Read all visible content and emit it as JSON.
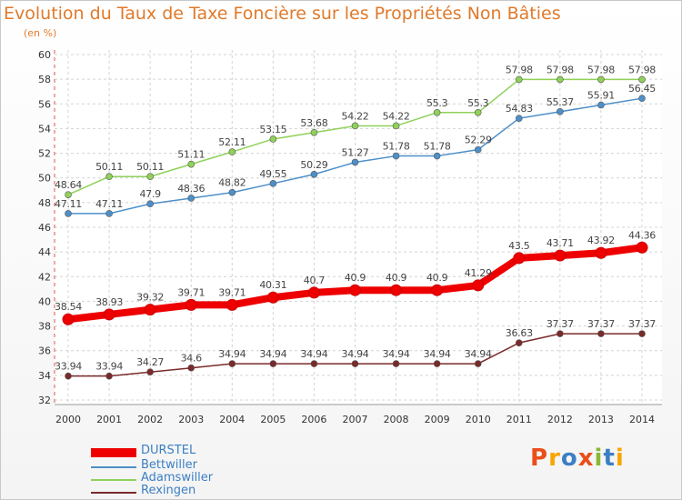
{
  "header": {
    "title": "Evolution du Taux de Taxe Foncière sur les Propriétés Non Bâties",
    "subtitle": "(en %)"
  },
  "brand": {
    "text": "Proxiti",
    "colors": [
      "#e94e1b",
      "#f7a600",
      "#3b7fc4",
      "#e94e1b",
      "#8ab833",
      "#3b7fc4",
      "#f7a600"
    ]
  },
  "chart_data": {
    "type": "line",
    "title": "Evolution du Taux de Taxe Foncière sur les Propriétés Non Bâties",
    "ylabel": "(en %)",
    "xlabel": "",
    "ylim": [
      32,
      60
    ],
    "yticks": [
      32,
      34,
      36,
      38,
      40,
      42,
      44,
      46,
      48,
      50,
      52,
      54,
      56,
      58,
      60
    ],
    "grid": true,
    "legend_position": "bottom-left",
    "x": [
      "2000",
      "2001",
      "2002",
      "2003",
      "2004",
      "2005",
      "2006",
      "2007",
      "2008",
      "2009",
      "2010",
      "2011",
      "2012",
      "2013",
      "2014"
    ],
    "series": [
      {
        "name": "DURSTEL",
        "color": "#ee0000",
        "emphasis": true,
        "values": [
          38.54,
          38.93,
          39.32,
          39.71,
          39.71,
          40.31,
          40.7,
          40.9,
          40.9,
          40.9,
          41.29,
          43.5,
          43.71,
          43.92,
          44.36
        ],
        "labels": [
          "38.54",
          "38.93",
          "39.32",
          "39.71",
          "39.71",
          "40.31",
          "40.7",
          "40.9",
          "40.9",
          "40.9",
          "41.29",
          "43.5",
          "43.71",
          "43.92",
          "44.36"
        ]
      },
      {
        "name": "Bettwiller",
        "color": "#4d8fc9",
        "values": [
          47.11,
          47.11,
          47.9,
          48.36,
          48.82,
          49.55,
          50.29,
          51.27,
          51.78,
          51.78,
          52.29,
          54.83,
          55.37,
          55.91,
          56.45
        ],
        "labels": [
          "47.11",
          "47.11",
          "47.9",
          "48.36",
          "48.82",
          "49.55",
          "50.29",
          "51.27",
          "51.78",
          "51.78",
          "52.29",
          "54.83",
          "55.37",
          "55.91",
          "56.45"
        ]
      },
      {
        "name": "Adamswiller",
        "color": "#8fd15a",
        "values": [
          48.64,
          50.11,
          50.11,
          51.11,
          52.11,
          53.15,
          53.68,
          54.22,
          54.22,
          55.3,
          55.3,
          57.98,
          57.98,
          57.98,
          57.98
        ],
        "labels": [
          "48.64",
          "50.11",
          "50.11",
          "51.11",
          "52.11",
          "53.15",
          "53.68",
          "54.22",
          "54.22",
          "55.3",
          "55.3",
          "57.98",
          "57.98",
          "57.98",
          "57.98"
        ]
      },
      {
        "name": "Rexingen",
        "color": "#7a2a2a",
        "values": [
          33.94,
          33.94,
          34.27,
          34.6,
          34.94,
          34.94,
          34.94,
          34.94,
          34.94,
          34.94,
          34.94,
          36.63,
          37.37,
          37.37,
          37.37
        ],
        "labels": [
          "33.94",
          "33.94",
          "34.27",
          "34.6",
          "34.94",
          "34.94",
          "34.94",
          "34.94",
          "34.94",
          "34.94",
          "34.94",
          "36.63",
          "37.37",
          "37.37",
          "37.37"
        ]
      }
    ]
  }
}
